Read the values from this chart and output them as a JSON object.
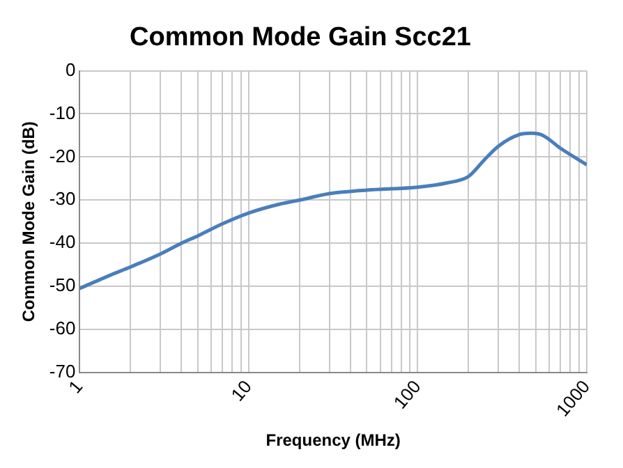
{
  "chart_data": {
    "type": "line",
    "title": "Common Mode Gain Scc21",
    "xlabel": "Frequency (MHz)",
    "ylabel": "Common Mode Gain (dB)",
    "log": "x",
    "grid": true,
    "legend": false,
    "marker": "none",
    "line_style": "solid",
    "x": [
      1,
      1.5,
      2,
      3,
      4,
      5,
      7,
      10,
      15,
      20,
      30,
      50,
      100,
      150,
      200,
      250,
      300,
      400,
      470,
      550,
      700,
      1000
    ],
    "series": [
      {
        "color": "#4a7ebb",
        "values": [
          -50.5,
          -47.5,
          -45.5,
          -42.5,
          -40,
          -38.3,
          -35.5,
          -33,
          -31,
          -30,
          -28.5,
          -27.7,
          -27,
          -26,
          -24.5,
          -20.5,
          -17.5,
          -14.8,
          -14.5,
          -15,
          -18,
          -21.8
        ]
      }
    ],
    "xlim": [
      1,
      1000
    ],
    "ylim": [
      -70,
      0
    ],
    "xticks": [
      1,
      {
        "value": 2,
        "label": null
      },
      {
        "value": 3,
        "label": null
      },
      {
        "value": 4,
        "label": null
      },
      {
        "value": 5,
        "label": null
      },
      {
        "value": 6,
        "label": null
      },
      {
        "value": 7,
        "label": null
      },
      {
        "value": 8,
        "label": null
      },
      {
        "value": 9,
        "label": null
      },
      10,
      {
        "value": 20,
        "label": null
      },
      {
        "value": 30,
        "label": null
      },
      {
        "value": 40,
        "label": null
      },
      {
        "value": 50,
        "label": null
      },
      {
        "value": 60,
        "label": null
      },
      {
        "value": 70,
        "label": null
      },
      {
        "value": 80,
        "label": null
      },
      {
        "value": 90,
        "label": null
      },
      100,
      {
        "value": 200,
        "label": null
      },
      {
        "value": 300,
        "label": null
      },
      {
        "value": 400,
        "label": null
      },
      {
        "value": 500,
        "label": null
      },
      {
        "value": 600,
        "label": null
      },
      {
        "value": 700,
        "label": null
      },
      {
        "value": 800,
        "label": null
      },
      {
        "value": 900,
        "label": null
      },
      1000
    ],
    "yticks": [
      -70,
      -60,
      -50,
      -40,
      -30,
      -20,
      -10,
      0
    ]
  }
}
